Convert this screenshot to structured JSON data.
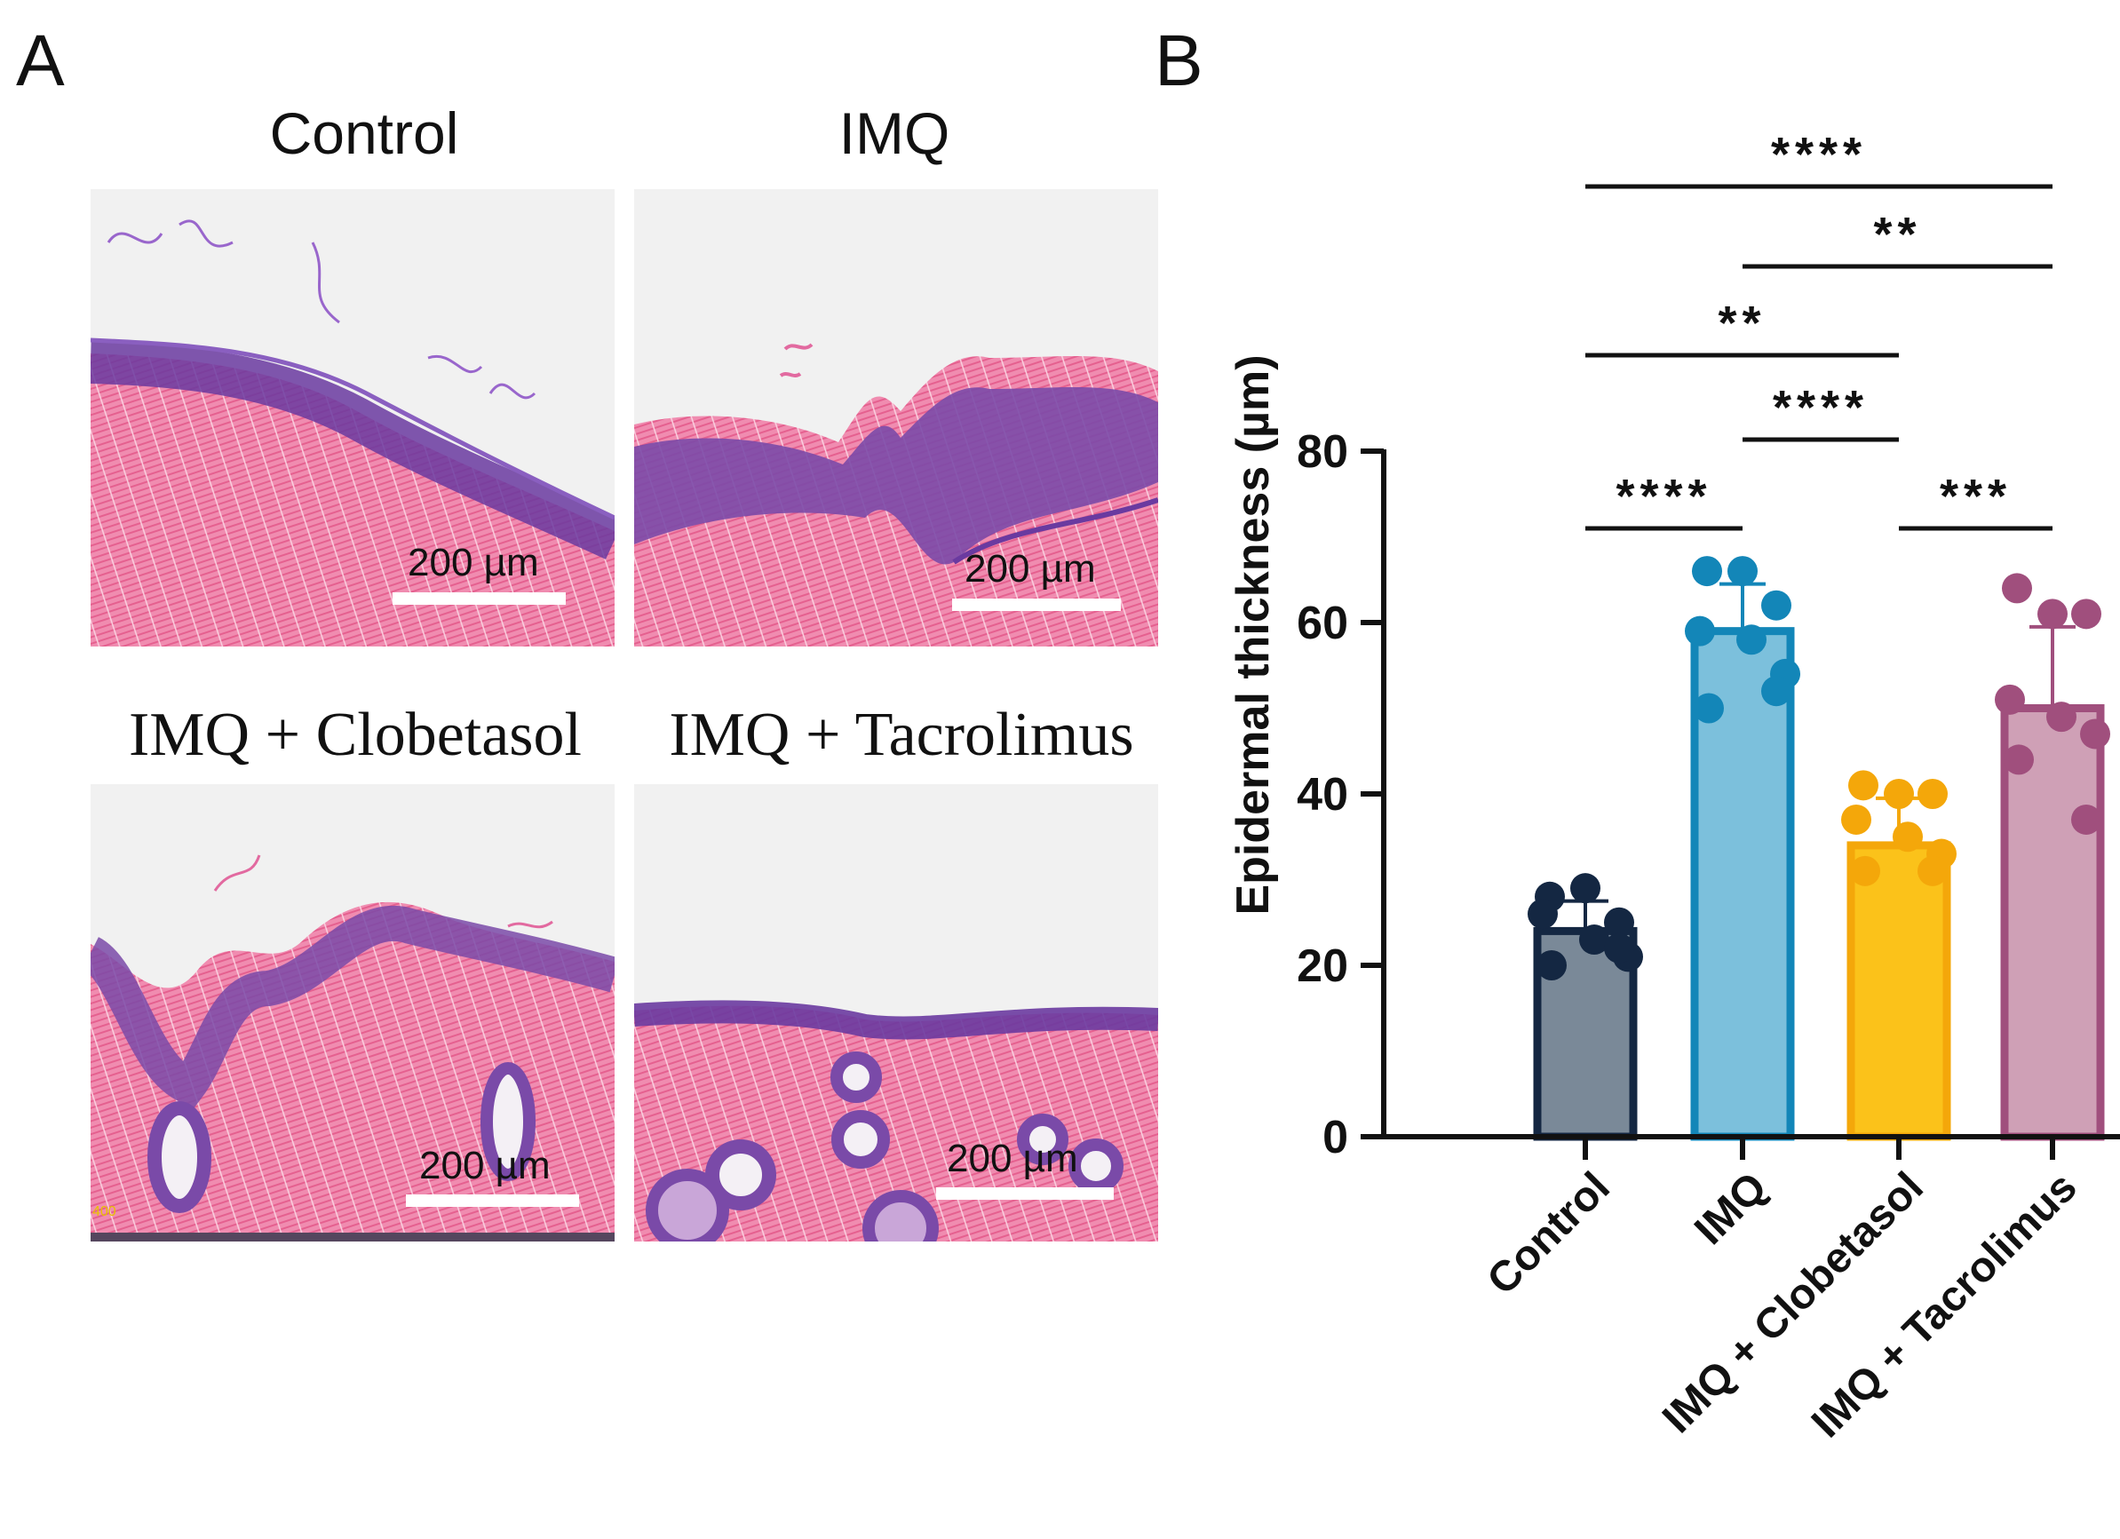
{
  "panel_a": {
    "letter": "A",
    "conditions": [
      {
        "title": "Control",
        "scale_label": "200 µm"
      },
      {
        "title": "IMQ",
        "scale_label": "200 µm"
      },
      {
        "title": "IMQ + Clobetasol",
        "scale_label": "200 µm",
        "corner_mark": "400"
      },
      {
        "title": "IMQ + Tacrolimus",
        "scale_label": "200 µm"
      }
    ]
  },
  "panel_b": {
    "letter": "B"
  },
  "chart_data": {
    "type": "bar",
    "title": "",
    "xlabel": "",
    "ylabel": "Epidermal thickness (µm)",
    "ylim": [
      0,
      80
    ],
    "yticks": [
      0,
      20,
      40,
      60,
      80
    ],
    "categories": [
      "Control",
      "IMQ",
      "IMQ + Clobetasol",
      "IMQ + Tacrolimus"
    ],
    "values": [
      24,
      59,
      34,
      50
    ],
    "errors": [
      3.5,
      5.5,
      5.5,
      9.5
    ],
    "points": [
      [
        28,
        29,
        25,
        26,
        23,
        21,
        20,
        22
      ],
      [
        66,
        66,
        62,
        59,
        58,
        54,
        50,
        52
      ],
      [
        41,
        40,
        40,
        37,
        35,
        33,
        31,
        31
      ],
      [
        64,
        61,
        61,
        51,
        49,
        47,
        44,
        37
      ]
    ],
    "fill_colors": [
      "#7a8998",
      "#7cc0dc",
      "#fbc21a",
      "#cfa0b6"
    ],
    "edge_colors": [
      "#142742",
      "#1386b8",
      "#f4a70a",
      "#a04f7d"
    ],
    "significance": [
      {
        "from": 0,
        "to": 3,
        "label": "****"
      },
      {
        "from": 1,
        "to": 3,
        "label": "**"
      },
      {
        "from": 0,
        "to": 2,
        "label": "**"
      },
      {
        "from": 1,
        "to": 2,
        "label": "****"
      },
      {
        "from": 0,
        "to": 1,
        "label": "****"
      },
      {
        "from": 2,
        "to": 3,
        "label": "***"
      }
    ]
  }
}
